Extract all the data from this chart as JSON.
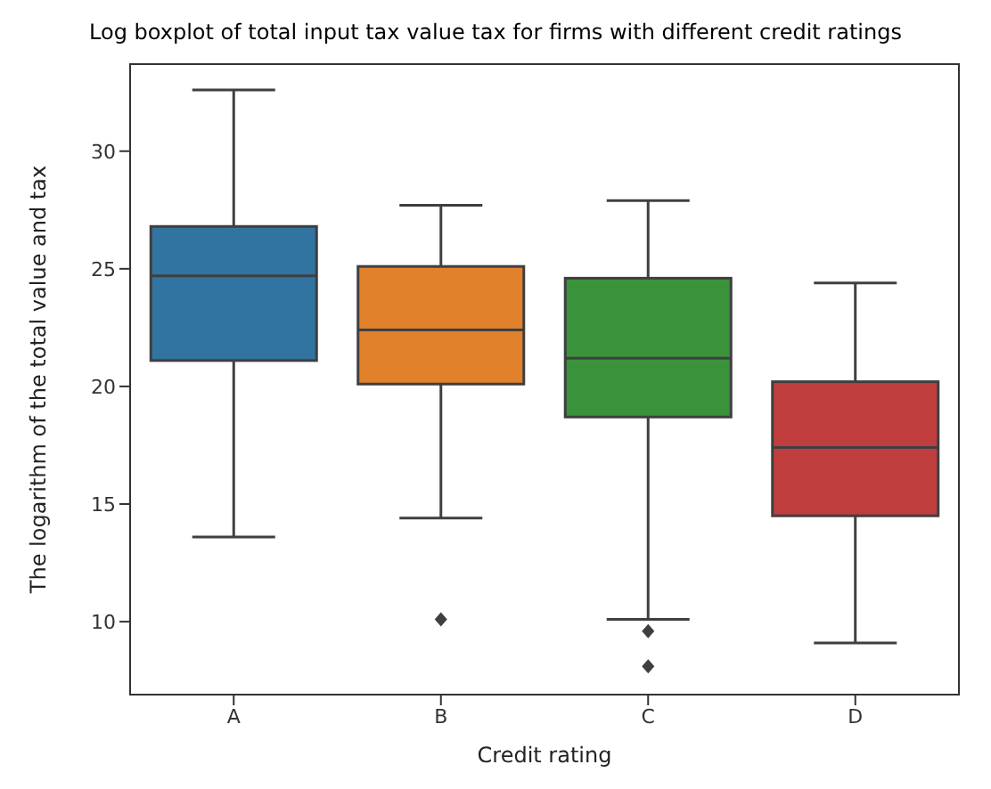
{
  "chart_data": {
    "type": "box",
    "title": "Log boxplot of total input tax value tax for firms with different credit ratings",
    "xlabel": "Credit rating",
    "ylabel": "The logarithm of the total value and tax",
    "categories": [
      "A",
      "B",
      "C",
      "D"
    ],
    "colors": [
      "#3274a1",
      "#e1812c",
      "#3a923a",
      "#c03d3e"
    ],
    "boxes": [
      {
        "low": 13.6,
        "q1": 21.1,
        "median": 24.7,
        "q3": 26.8,
        "high": 32.6
      },
      {
        "low": 14.4,
        "q1": 20.1,
        "median": 22.4,
        "q3": 25.1,
        "high": 27.7,
        "outliers": [
          10.1
        ]
      },
      {
        "low": 10.1,
        "q1": 18.7,
        "median": 21.2,
        "q3": 24.6,
        "high": 27.9,
        "outliers": [
          9.6,
          8.1
        ]
      },
      {
        "low": 9.1,
        "q1": 14.5,
        "median": 17.4,
        "q3": 20.2,
        "high": 24.4
      }
    ],
    "ylim": [
      6.9,
      33.7
    ],
    "yticks": [
      10,
      15,
      20,
      25,
      30
    ],
    "grid": false
  }
}
